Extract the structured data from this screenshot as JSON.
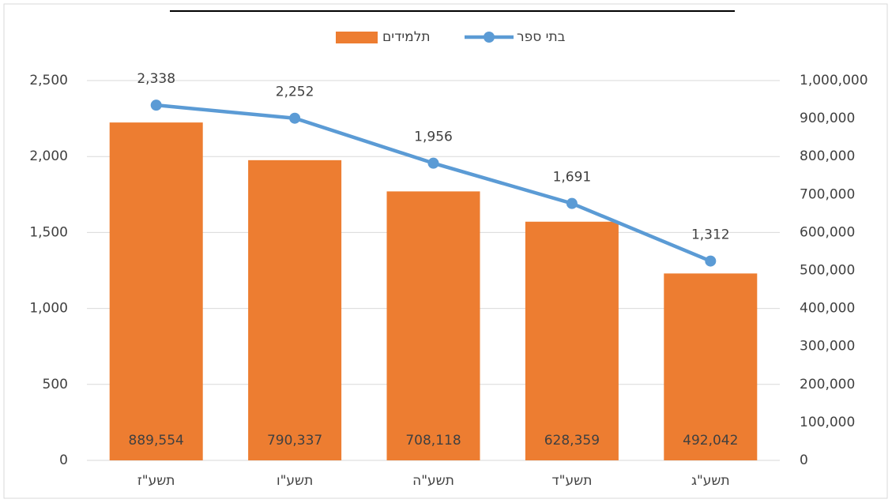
{
  "chart_data": {
    "type": "bar",
    "categories": [
      "תשע\"ז",
      "תשע\"ו",
      "תשע\"ה",
      "תשע\"ד",
      "תשע\"ג"
    ],
    "series": [
      {
        "name": "תלמידים",
        "type": "bar",
        "axis": "y2",
        "color": "#ed7d31",
        "values": [
          889554,
          790337,
          708118,
          628359,
          492042
        ],
        "value_labels": [
          "889,554",
          "790,337",
          "708,118",
          "628,359",
          "492,042"
        ]
      },
      {
        "name": "בתי ספר",
        "type": "line",
        "axis": "y",
        "color": "#5b9bd5",
        "values": [
          2338,
          2252,
          1956,
          1691,
          1312
        ],
        "value_labels": [
          "2,338",
          "2,252",
          "1,956",
          "1,691",
          "1,312"
        ]
      }
    ],
    "ylim": [
      0,
      2500
    ],
    "yticks": [
      0,
      500,
      {
        "value": 1000,
        "label": "1,000"
      },
      {
        "value": 1500,
        "label": "1,500"
      },
      {
        "value": 2000,
        "label": "2,000"
      },
      {
        "value": 2500,
        "label": "2,500"
      }
    ],
    "y2lim": [
      0,
      1000000
    ],
    "y2ticks": [
      0,
      {
        "value": 100000,
        "label": "100,000"
      },
      {
        "value": 200000,
        "label": "200,000"
      },
      {
        "value": 300000,
        "label": "300,000"
      },
      {
        "value": 400000,
        "label": "400,000"
      },
      {
        "value": 500000,
        "label": "500,000"
      },
      {
        "value": 600000,
        "label": "600,000"
      },
      {
        "value": 700000,
        "label": "700,000"
      },
      {
        "value": 800000,
        "label": "800,000"
      },
      {
        "value": 900000,
        "label": "900,000"
      },
      {
        "value": 1000000,
        "label": "1,000,000"
      }
    ],
    "grid": true,
    "legend": "top"
  }
}
